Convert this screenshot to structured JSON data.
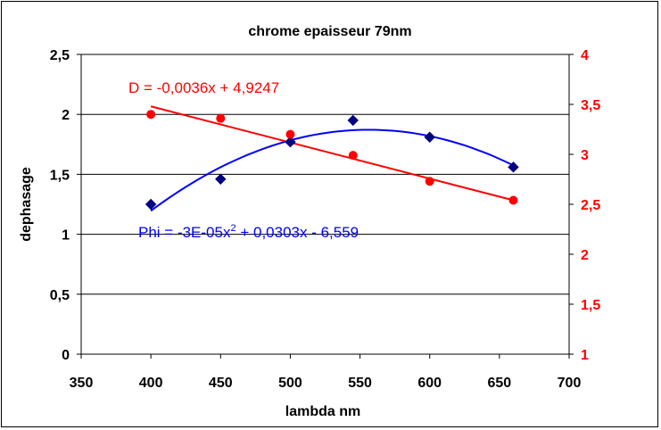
{
  "chart_data": {
    "type": "scatter",
    "title": "chrome epaisseur 79nm",
    "xlabel": "lambda nm",
    "ylabel": "dephasage",
    "xlim": [
      350,
      700
    ],
    "xticks": [
      "350",
      "400",
      "450",
      "500",
      "550",
      "600",
      "650",
      "700"
    ],
    "ylim_left": [
      0,
      2.5
    ],
    "yticks_left": [
      "0",
      "0,5",
      "1",
      "1,5",
      "2",
      "2,5"
    ],
    "ylim_right": [
      1,
      4
    ],
    "yticks_right": [
      "1",
      "1,5",
      "2",
      "2,5",
      "3",
      "3,5",
      "4"
    ],
    "grid": "horizontal",
    "series": [
      {
        "axis": "left",
        "marker": "diamond",
        "color": "#000080",
        "x": [
          400,
          450,
          500,
          545,
          600,
          660
        ],
        "y": [
          1.25,
          1.46,
          1.77,
          1.95,
          1.81,
          1.56
        ]
      },
      {
        "axis": "right",
        "marker": "circle",
        "color": "#ff0000",
        "x": [
          400,
          450,
          500,
          545,
          600,
          660
        ],
        "y": [
          3.4,
          3.36,
          3.2,
          2.99,
          2.73,
          2.54
        ]
      }
    ],
    "trendlines": [
      {
        "axis": "left",
        "kind": "polynomial",
        "color": "#0000ff",
        "x_range": [
          400,
          660
        ],
        "equation_label": "Phi = -3E-05x",
        "equation_exponent": "2",
        "equation_rest": " + 0,0303x - 6,559",
        "label_position": "bottom-left"
      },
      {
        "axis": "right",
        "kind": "linear",
        "color": "#ff0000",
        "x_range": [
          400,
          660
        ],
        "y_start": 3.48,
        "y_end": 2.54,
        "equation_label": "D = -0,0036x + 4,9247",
        "label_position": "top-left"
      }
    ]
  }
}
